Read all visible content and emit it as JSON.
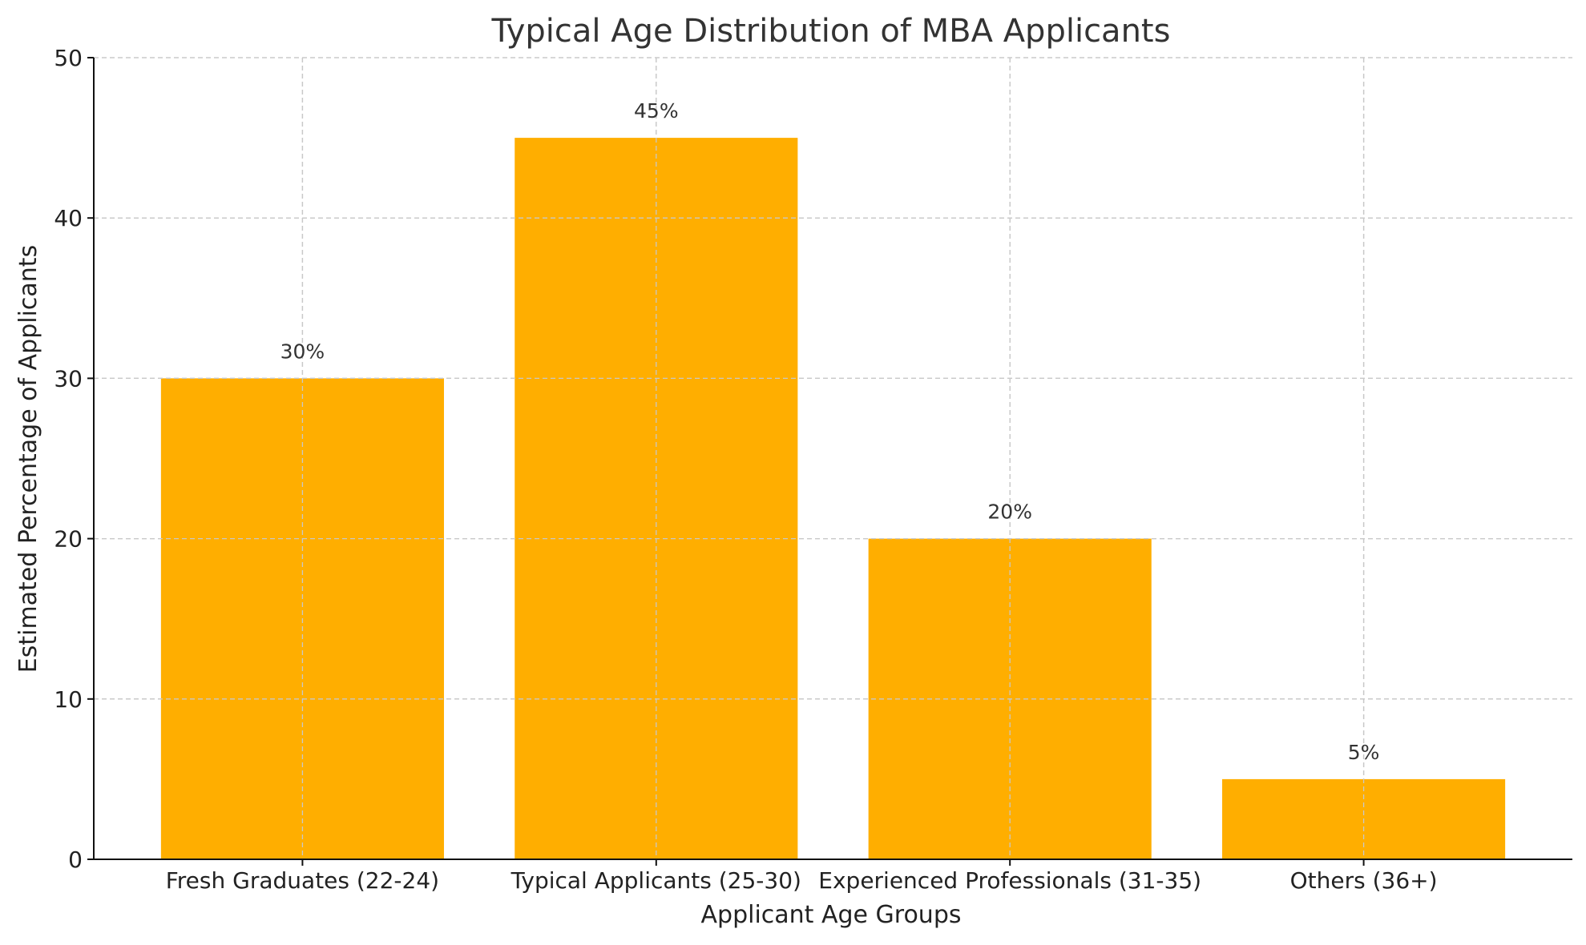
{
  "chart_data": {
    "type": "bar",
    "title": "Typical Age Distribution of MBA Applicants",
    "xlabel": "Applicant Age Groups",
    "ylabel": "Estimated Percentage of Applicants",
    "categories": [
      "Fresh Graduates (22-24)",
      "Typical Applicants (25-30)",
      "Experienced Professionals (31-35)",
      "Others (36+)"
    ],
    "values": [
      30,
      45,
      20,
      5
    ],
    "data_labels": [
      "30%",
      "45%",
      "20%",
      "5%"
    ],
    "ylim": [
      0,
      50
    ],
    "yticks": [
      0,
      10,
      20,
      30,
      40,
      50
    ],
    "grid": true,
    "bar_color": "#ffae00"
  }
}
